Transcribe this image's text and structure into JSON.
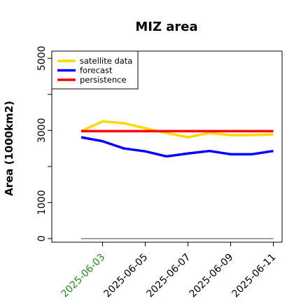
{
  "chart_data": {
    "type": "line",
    "title": "MIZ area",
    "xlabel": "",
    "ylabel": "Area (1000km2)",
    "x": [
      "2025-06-02",
      "2025-06-03",
      "2025-06-04",
      "2025-06-05",
      "2025-06-06",
      "2025-06-07",
      "2025-06-08",
      "2025-06-09",
      "2025-06-10",
      "2025-06-11"
    ],
    "xticks": [
      "2025-06-03",
      "2025-06-05",
      "2025-06-07",
      "2025-06-09",
      "2025-06-11"
    ],
    "xtick_colors": [
      "#228b22",
      "#000000",
      "#000000",
      "#000000",
      "#000000"
    ],
    "yticks": [
      0,
      1000,
      3000,
      5000
    ],
    "ylim": [
      -100,
      5200
    ],
    "legend_position": "top-left",
    "series": [
      {
        "name": "satellite data",
        "color": "#ffd700",
        "values": [
          2980,
          3250,
          3200,
          3060,
          2930,
          2810,
          2930,
          2870,
          2870,
          2890
        ]
      },
      {
        "name": "forecast",
        "color": "#0000ff",
        "values": [
          2810,
          2700,
          2500,
          2420,
          2280,
          2360,
          2430,
          2340,
          2340,
          2430
        ]
      },
      {
        "name": "persistence",
        "color": "#ff0000",
        "values": [
          2980,
          2980,
          2980,
          2980,
          2980,
          2980,
          2980,
          2980,
          2980,
          2980
        ]
      }
    ],
    "baseline": {
      "color": "#808080",
      "value": 0
    }
  }
}
